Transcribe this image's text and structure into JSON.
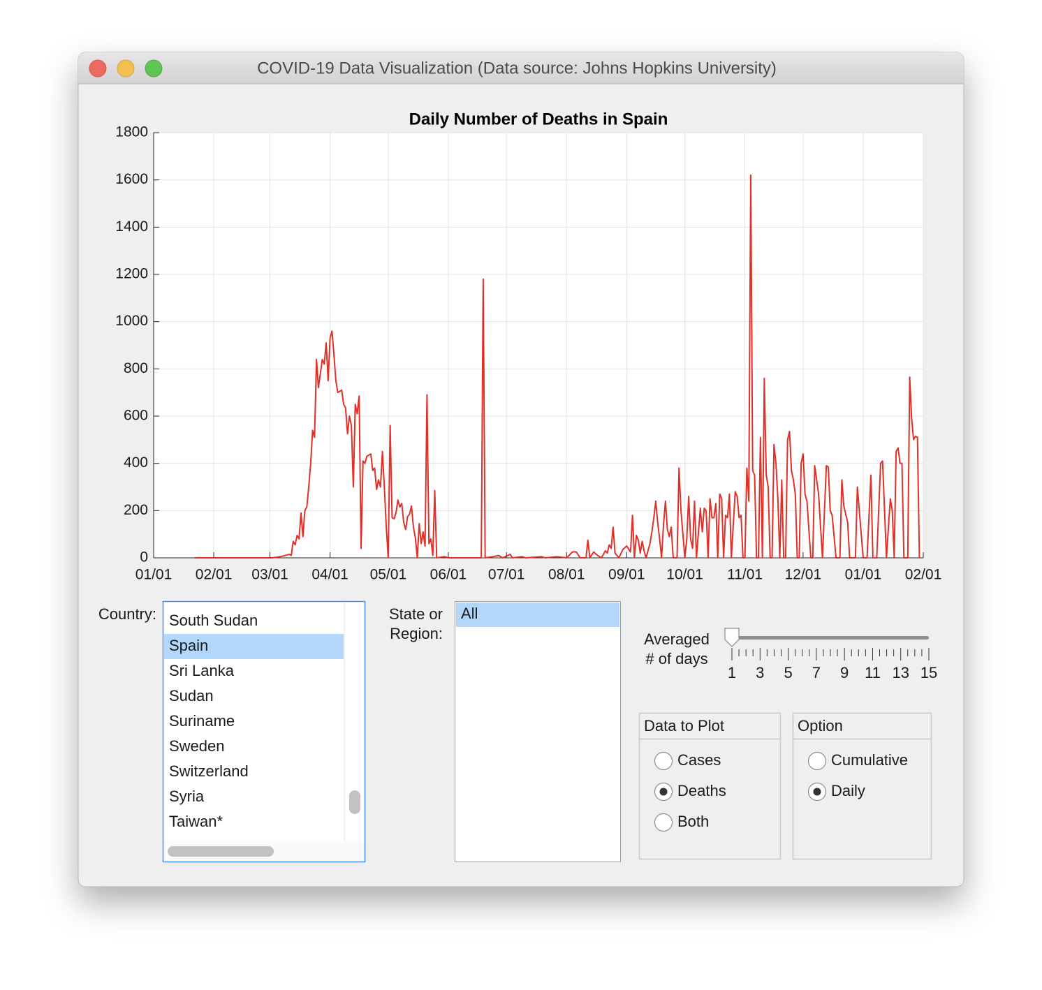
{
  "window_title": "COVID-19 Data Visualization (Data source: Johns Hopkins University)",
  "chart_data": {
    "type": "line",
    "title": "Daily Number of Deaths in Spain",
    "color": "#e0302a",
    "grid": true,
    "xlim": [
      0,
      397
    ],
    "ylim": [
      0,
      1800
    ],
    "xticks": [
      {
        "value": 0,
        "label": "01/01"
      },
      {
        "value": 31,
        "label": "02/01"
      },
      {
        "value": 60,
        "label": "03/01"
      },
      {
        "value": 91,
        "label": "04/01"
      },
      {
        "value": 121,
        "label": "05/01"
      },
      {
        "value": 152,
        "label": "06/01"
      },
      {
        "value": 182,
        "label": "07/01"
      },
      {
        "value": 213,
        "label": "08/01"
      },
      {
        "value": 244,
        "label": "09/01"
      },
      {
        "value": 274,
        "label": "10/01"
      },
      {
        "value": 305,
        "label": "11/01"
      },
      {
        "value": 335,
        "label": "12/01"
      },
      {
        "value": 366,
        "label": "01/01"
      },
      {
        "value": 397,
        "label": "02/01"
      }
    ],
    "yticks": [
      0,
      200,
      400,
      600,
      800,
      1000,
      1200,
      1400,
      1600,
      1800
    ],
    "x": [
      21,
      40,
      61,
      64,
      67,
      70,
      71,
      72,
      73,
      74,
      75,
      76,
      77,
      78,
      79,
      80,
      81,
      82,
      83,
      84,
      85,
      86,
      87,
      88,
      89,
      90,
      91,
      92,
      93,
      94,
      95,
      96,
      97,
      98,
      99,
      100,
      101,
      102,
      103,
      104,
      105,
      106,
      107,
      108,
      109,
      110,
      111,
      112,
      113,
      114,
      115,
      116,
      117,
      118,
      119,
      120,
      121,
      122,
      123,
      124,
      125,
      126,
      127,
      128,
      129,
      130,
      131,
      132,
      133,
      134,
      135,
      136,
      137,
      138,
      139,
      140,
      141,
      142,
      143,
      144,
      145,
      146,
      150,
      152,
      169,
      170,
      171,
      175,
      178,
      180,
      184,
      185,
      190,
      192,
      200,
      202,
      208,
      213,
      216,
      218,
      220,
      223,
      224,
      225,
      227,
      229,
      231,
      233,
      234,
      235,
      236,
      237,
      238,
      240,
      242,
      244,
      246,
      247,
      248,
      249,
      250,
      251,
      252,
      253,
      254,
      256,
      257,
      258,
      259,
      260,
      261,
      262,
      263,
      264,
      265,
      266,
      267,
      268,
      270,
      271,
      272,
      273,
      274,
      275,
      276,
      277,
      278,
      279,
      280,
      282,
      283,
      284,
      285,
      286,
      287,
      288,
      289,
      290,
      291,
      292,
      293,
      294,
      295,
      296,
      297,
      298,
      300,
      301,
      302,
      303,
      304,
      305,
      306,
      307,
      308,
      309,
      310,
      311,
      312,
      313,
      314,
      315,
      316,
      317,
      318,
      319,
      320,
      321,
      322,
      323,
      324,
      325,
      326,
      327,
      328,
      329,
      330,
      331,
      332,
      333,
      334,
      335,
      336,
      337,
      339,
      340,
      341,
      342,
      343,
      345,
      347,
      348,
      349,
      350,
      352,
      354,
      355,
      356,
      358,
      359,
      362,
      363,
      364,
      366,
      368,
      370,
      371,
      373,
      375,
      376,
      378,
      380,
      381,
      382,
      383,
      384,
      385,
      386,
      387,
      389,
      390,
      391,
      392,
      393,
      394,
      395
    ],
    "values": [
      0,
      0,
      0,
      3,
      8,
      15,
      10,
      70,
      55,
      95,
      80,
      190,
      90,
      200,
      215,
      300,
      400,
      540,
      510,
      840,
      720,
      780,
      840,
      820,
      910,
      750,
      930,
      960,
      860,
      750,
      700,
      705,
      710,
      650,
      635,
      525,
      600,
      560,
      300,
      650,
      610,
      685,
      40,
      410,
      400,
      430,
      435,
      440,
      370,
      380,
      290,
      330,
      300,
      450,
      300,
      130,
      0,
      560,
      170,
      165,
      190,
      245,
      215,
      230,
      150,
      120,
      175,
      185,
      220,
      130,
      85,
      0,
      145,
      60,
      110,
      50,
      690,
      60,
      80,
      10,
      285,
      0,
      5,
      0,
      0,
      1180,
      0,
      5,
      10,
      0,
      15,
      0,
      5,
      0,
      5,
      0,
      5,
      0,
      25,
      25,
      0,
      0,
      75,
      0,
      25,
      10,
      0,
      30,
      20,
      55,
      40,
      130,
      20,
      0,
      35,
      50,
      25,
      180,
      0,
      95,
      75,
      20,
      70,
      30,
      0,
      60,
      110,
      170,
      240,
      150,
      80,
      0,
      140,
      240,
      120,
      90,
      130,
      0,
      0,
      380,
      200,
      100,
      0,
      80,
      260,
      80,
      40,
      240,
      0,
      210,
      110,
      210,
      200,
      0,
      250,
      170,
      170,
      230,
      0,
      270,
      250,
      0,
      180,
      170,
      270,
      0,
      280,
      260,
      170,
      180,
      0,
      0,
      380,
      240,
      1620,
      370,
      350,
      0,
      0,
      510,
      0,
      760,
      350,
      300,
      0,
      0,
      480,
      400,
      250,
      0,
      330,
      0,
      0,
      500,
      535,
      370,
      330,
      270,
      0,
      0,
      400,
      440,
      270,
      240,
      0,
      0,
      390,
      330,
      270,
      0,
      390,
      385,
      200,
      180,
      0,
      0,
      330,
      220,
      150,
      0,
      0,
      300,
      200,
      0,
      0,
      350,
      0,
      0,
      400,
      410,
      0,
      250,
      200,
      0,
      450,
      465,
      400,
      400,
      0,
      0,
      765,
      590,
      500,
      515,
      510,
      0
    ]
  },
  "country_list": {
    "label": "Country:",
    "items": [
      "South Sudan",
      "Spain",
      "Sri Lanka",
      "Sudan",
      "Suriname",
      "Sweden",
      "Switzerland",
      "Syria",
      "Taiwan*"
    ],
    "selected": 1
  },
  "region_list": {
    "label": [
      "State or",
      "Region:"
    ],
    "items": [
      "All"
    ],
    "selected": 0
  },
  "slider": {
    "label": [
      "Averaged",
      "# of days"
    ],
    "min": 1,
    "max": 15,
    "value": 1,
    "labels": [
      1,
      3,
      5,
      7,
      9,
      11,
      13,
      15
    ]
  },
  "data_group": {
    "title": "Data to Plot",
    "options": [
      "Cases",
      "Deaths",
      "Both"
    ],
    "selected": 1
  },
  "option_group": {
    "title": "Option",
    "options": [
      "Cumulative",
      "Daily"
    ],
    "selected": 1
  }
}
